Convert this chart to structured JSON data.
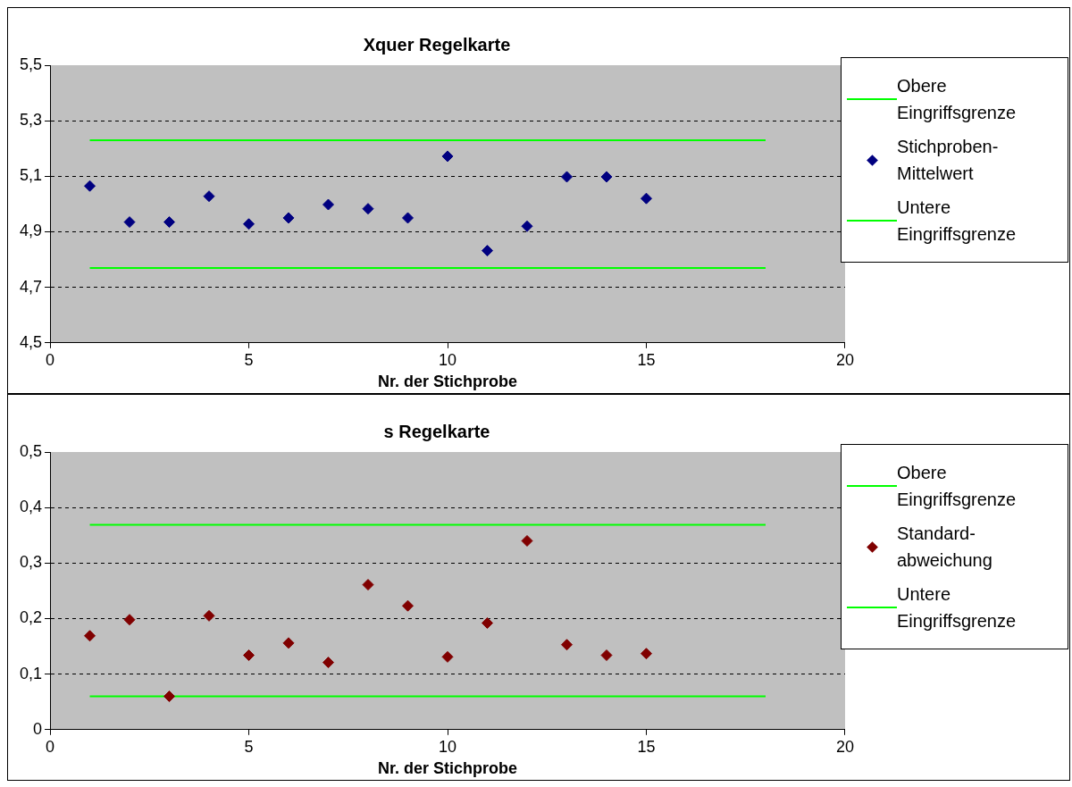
{
  "chart_data": [
    {
      "type": "scatter",
      "title": "Xquer Regelkarte",
      "xlabel": "Nr. der Stichprobe",
      "xlim": [
        0,
        20
      ],
      "xticks": [
        0,
        5,
        10,
        15,
        20
      ],
      "ylim": [
        4.5,
        5.5
      ],
      "yticks": [
        {
          "value": 4.5,
          "label": "4,5"
        },
        {
          "value": 4.7,
          "label": "4,7"
        },
        {
          "value": 4.9,
          "label": "4,9"
        },
        {
          "value": 5.1,
          "label": "5,1"
        },
        {
          "value": 5.3,
          "label": "5,3"
        },
        {
          "value": 5.5,
          "label": "5,5"
        }
      ],
      "grid": "y",
      "legend": "right",
      "series": [
        {
          "type": "line",
          "name": "Obere Eingriffsgrenze",
          "color": "#00ff00",
          "x": [
            1,
            18
          ],
          "values": [
            5.23,
            5.23
          ],
          "marker": "none"
        },
        {
          "type": "scatter",
          "name": "Stichproben-Mittelwert",
          "color": "#000080",
          "marker": "diamond",
          "x": [
            1,
            2,
            3,
            4,
            5,
            6,
            7,
            8,
            9,
            10,
            11,
            12,
            13,
            14,
            15
          ],
          "values": [
            5.065,
            4.935,
            4.935,
            5.028,
            4.928,
            4.95,
            4.998,
            4.983,
            4.95,
            5.172,
            4.832,
            4.92,
            5.098,
            5.098,
            5.02
          ]
        },
        {
          "type": "line",
          "name": "Untere Eingriffsgrenze",
          "color": "#00ff00",
          "x": [
            1,
            18
          ],
          "values": [
            4.77,
            4.77
          ],
          "marker": "none"
        }
      ]
    },
    {
      "type": "scatter",
      "title": "s Regelkarte",
      "xlabel": "Nr. der Stichprobe",
      "xlim": [
        0,
        20
      ],
      "xticks": [
        0,
        5,
        10,
        15,
        20
      ],
      "ylim": [
        0,
        0.5
      ],
      "yticks": [
        0,
        {
          "value": 0.1,
          "label": "0,1"
        },
        {
          "value": 0.2,
          "label": "0,2"
        },
        {
          "value": 0.3,
          "label": "0,3"
        },
        {
          "value": 0.4,
          "label": "0,4"
        },
        {
          "value": 0.5,
          "label": "0,5"
        }
      ],
      "grid": "y",
      "legend": "right",
      "series": [
        {
          "type": "line",
          "name": "Obere Eingriffsgrenze",
          "color": "#00ff00",
          "x": [
            1,
            18
          ],
          "values": [
            0.369,
            0.369
          ],
          "marker": "none"
        },
        {
          "type": "scatter",
          "name": "Standard-abweichung",
          "color": "#800000",
          "marker": "diamond",
          "x": [
            1,
            2,
            3,
            4,
            5,
            6,
            7,
            8,
            9,
            10,
            11,
            12,
            13,
            14,
            15
          ],
          "values": [
            0.169,
            0.198,
            0.06,
            0.205,
            0.134,
            0.156,
            0.121,
            0.261,
            0.223,
            0.131,
            0.192,
            0.34,
            0.153,
            0.134,
            0.137
          ]
        },
        {
          "type": "line",
          "name": "Untere Eingriffsgrenze",
          "color": "#00ff00",
          "x": [
            1,
            18
          ],
          "values": [
            0.06,
            0.06
          ],
          "marker": "none"
        }
      ]
    }
  ]
}
